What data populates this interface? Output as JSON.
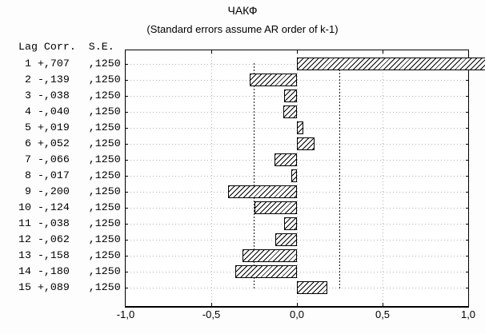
{
  "title": "ЧАКФ",
  "subtitle": "(Standard errors assume AR order of k-1)",
  "table": {
    "header": "Lag Corr.  S.E.",
    "col_names": [
      "Lag",
      "Corr.",
      "S.E."
    ],
    "rows": [
      {
        "lag": "1",
        "corr": "+,707",
        "se": ",1250"
      },
      {
        "lag": "2",
        "corr": "-,139",
        "se": ",1250"
      },
      {
        "lag": "3",
        "corr": "-,038",
        "se": ",1250"
      },
      {
        "lag": "4",
        "corr": "-,040",
        "se": ",1250"
      },
      {
        "lag": "5",
        "corr": "+,019",
        "se": ",1250"
      },
      {
        "lag": "6",
        "corr": "+,052",
        "se": ",1250"
      },
      {
        "lag": "7",
        "corr": "-,066",
        "se": ",1250"
      },
      {
        "lag": "8",
        "corr": "-,017",
        "se": ",1250"
      },
      {
        "lag": "9",
        "corr": "-,200",
        "se": ",1250"
      },
      {
        "lag": "10",
        "corr": "-,124",
        "se": ",1250"
      },
      {
        "lag": "11",
        "corr": "-,038",
        "se": ",1250"
      },
      {
        "lag": "12",
        "corr": "-,062",
        "se": ",1250"
      },
      {
        "lag": "13",
        "corr": "-,158",
        "se": ",1250"
      },
      {
        "lag": "14",
        "corr": "-,180",
        "se": ",1250"
      },
      {
        "lag": "15",
        "corr": "+,089",
        "se": ",1250"
      }
    ]
  },
  "chart_data": {
    "type": "bar",
    "orientation": "horizontal",
    "title": "ЧАКФ",
    "subtitle": "(Standard errors assume AR order of k-1)",
    "categories": [
      1,
      2,
      3,
      4,
      5,
      6,
      7,
      8,
      9,
      10,
      11,
      12,
      13,
      14,
      15
    ],
    "values": [
      0.707,
      -0.139,
      -0.038,
      -0.04,
      0.019,
      0.052,
      -0.066,
      -0.017,
      -0.2,
      -0.124,
      -0.038,
      -0.062,
      -0.158,
      -0.18,
      0.089
    ],
    "standard_errors": [
      0.125,
      0.125,
      0.125,
      0.125,
      0.125,
      0.125,
      0.125,
      0.125,
      0.125,
      0.125,
      0.125,
      0.125,
      0.125,
      0.125,
      0.125
    ],
    "confidence_limits": [
      -0.25,
      0.25
    ],
    "xlim": [
      -1.0,
      1.0
    ],
    "xticks": [
      -1.0,
      -0.5,
      0.0,
      0.5,
      1.0
    ],
    "xtick_labels": [
      "-1,0",
      "-0,5",
      "0,0",
      "0,5",
      "1,0"
    ],
    "vgrid_values": [
      -0.5,
      0.0,
      0.5
    ],
    "grid": "dotted",
    "legend_position": "none",
    "bar_style": "white fill, black diagonal hatch, black border"
  },
  "colors": {
    "page_background": "#fdfdfd",
    "plot_background": "#ffffff",
    "axis": "#000000",
    "gridline": "#b0b0b0",
    "confidence_line": "#1a1a1a",
    "bar_fill": "#ffffff",
    "bar_hatch": "#000000",
    "text": "#000000"
  }
}
